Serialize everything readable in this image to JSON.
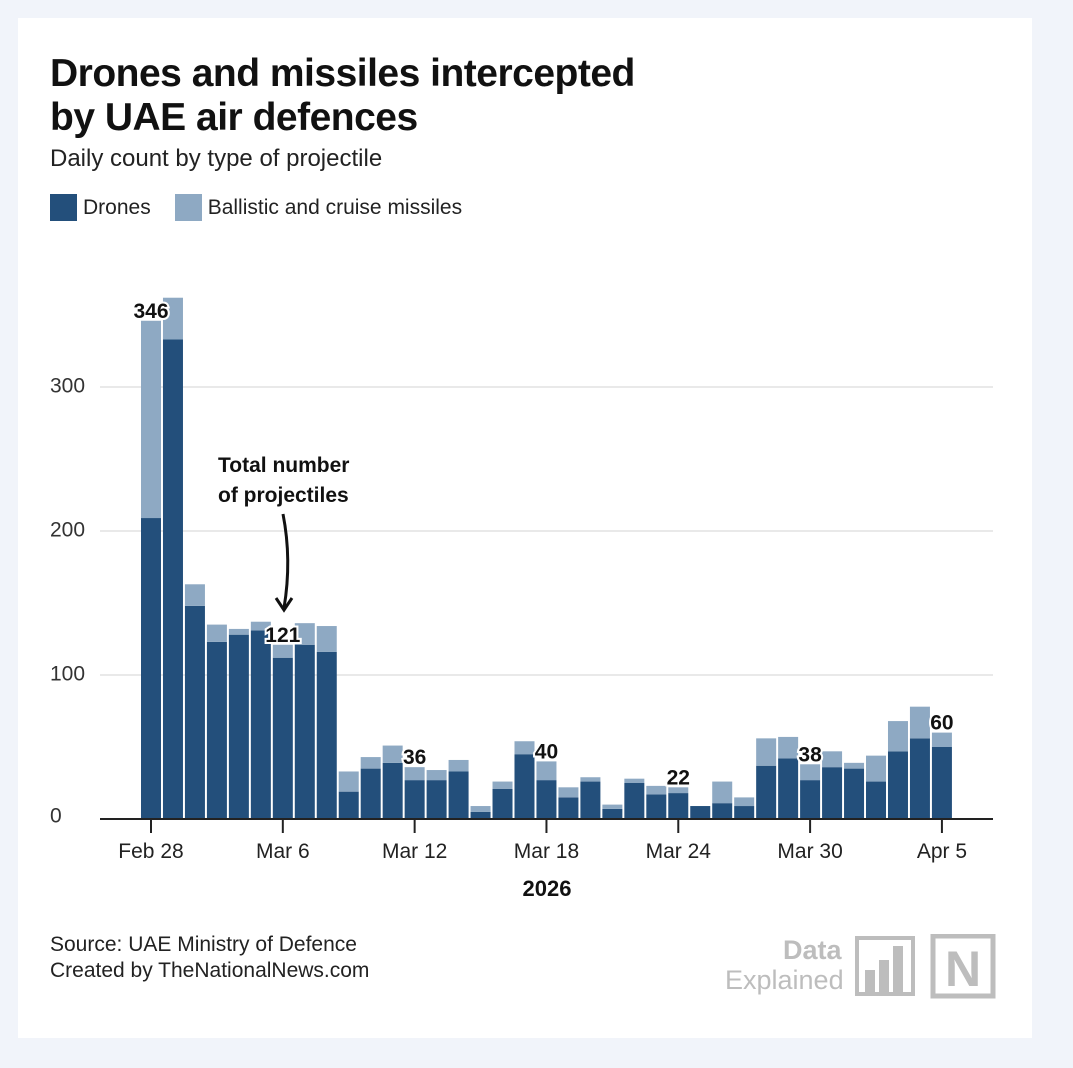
{
  "title_line1": "Drones and missiles intercepted",
  "title_line2": "by UAE air defences",
  "subtitle": "Daily count by type of projectile",
  "source": "Source: UAE Ministry of Defence",
  "credit": "Created by TheNationalNews.com",
  "logo": {
    "line1": "Data",
    "line2": "Explained",
    "mark": "N"
  },
  "colors": {
    "drones": "#234f7b",
    "missiles": "#8ea9c3",
    "background": "#f1f4fa"
  },
  "chart_data": {
    "type": "bar",
    "stacked": true,
    "title": "Drones and missiles intercepted by UAE air defences",
    "xlabel": "2026",
    "ylabel": "",
    "ylim": [
      0,
      370
    ],
    "yticks": [
      0,
      100,
      200,
      300
    ],
    "grid": true,
    "legend_position": "top-left",
    "categories": [
      "Feb 28",
      "Mar 1",
      "Mar 2",
      "Mar 3",
      "Mar 4",
      "Mar 5",
      "Mar 6",
      "Mar 7",
      "Mar 8",
      "Mar 9",
      "Mar 10",
      "Mar 11",
      "Mar 12",
      "Mar 13",
      "Mar 14",
      "Mar 15",
      "Mar 16",
      "Mar 17",
      "Mar 18",
      "Mar 19",
      "Mar 20",
      "Mar 21",
      "Mar 22",
      "Mar 23",
      "Mar 24",
      "Mar 25",
      "Mar 26",
      "Mar 27",
      "Mar 28",
      "Mar 29",
      "Mar 30",
      "Mar 31",
      "Apr 1",
      "Apr 2",
      "Apr 3",
      "Apr 4",
      "Apr 5"
    ],
    "xtick_labels": [
      "Feb 28",
      "Mar 6",
      "Mar 12",
      "Mar 18",
      "Mar 24",
      "Mar 30",
      "Apr 5"
    ],
    "series": [
      {
        "name": "Drones",
        "values": [
          209,
          333,
          148,
          123,
          128,
          131,
          112,
          121,
          116,
          19,
          35,
          39,
          27,
          27,
          33,
          5,
          21,
          45,
          27,
          15,
          26,
          7,
          25,
          17,
          18,
          9,
          11,
          9,
          37,
          42,
          27,
          36,
          35,
          26,
          47,
          56,
          50
        ]
      },
      {
        "name": "Ballistic and cruise missiles",
        "values": [
          137,
          29,
          15,
          12,
          4,
          6,
          9,
          15,
          18,
          14,
          8,
          12,
          9,
          7,
          8,
          4,
          5,
          9,
          13,
          7,
          3,
          3,
          3,
          6,
          4,
          0,
          15,
          6,
          19,
          15,
          11,
          11,
          4,
          18,
          21,
          22,
          10
        ]
      }
    ],
    "annotations": [
      {
        "category": "Feb 28",
        "text": "346"
      },
      {
        "category": "Mar 6",
        "text": "121"
      },
      {
        "category": "Mar 12",
        "text": "36"
      },
      {
        "category": "Mar 18",
        "text": "40"
      },
      {
        "category": "Mar 24",
        "text": "22"
      },
      {
        "category": "Mar 30",
        "text": "38"
      },
      {
        "category": "Apr 5",
        "text": "60"
      }
    ],
    "callout": {
      "line1": "Total number",
      "line2": "of projectiles"
    }
  }
}
